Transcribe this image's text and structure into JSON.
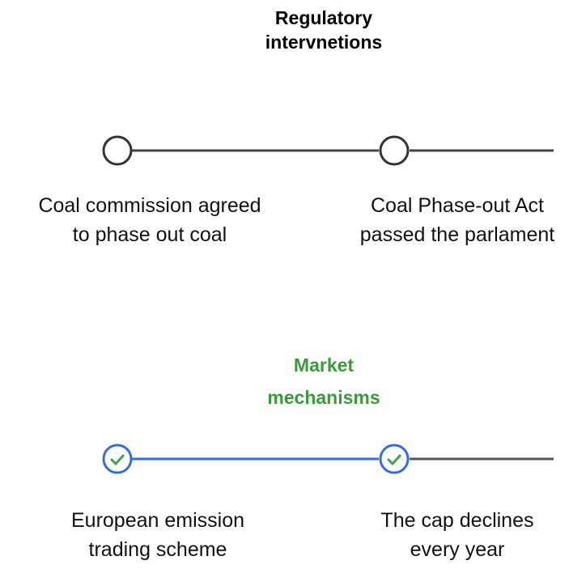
{
  "sections": [
    {
      "title": [
        "Regulatory",
        "intervnetions"
      ],
      "steps": [
        {
          "label": [
            "Coal commission agreed",
            "to phase out coal"
          ]
        },
        {
          "label": [
            "Coal Phase-out Act",
            "passed the parlament"
          ]
        }
      ]
    },
    {
      "title": [
        "Market",
        "mechanisms"
      ],
      "steps": [
        {
          "label": [
            "European emission",
            "trading scheme"
          ]
        },
        {
          "label": [
            "The cap declines",
            "every year"
          ]
        }
      ]
    }
  ]
}
